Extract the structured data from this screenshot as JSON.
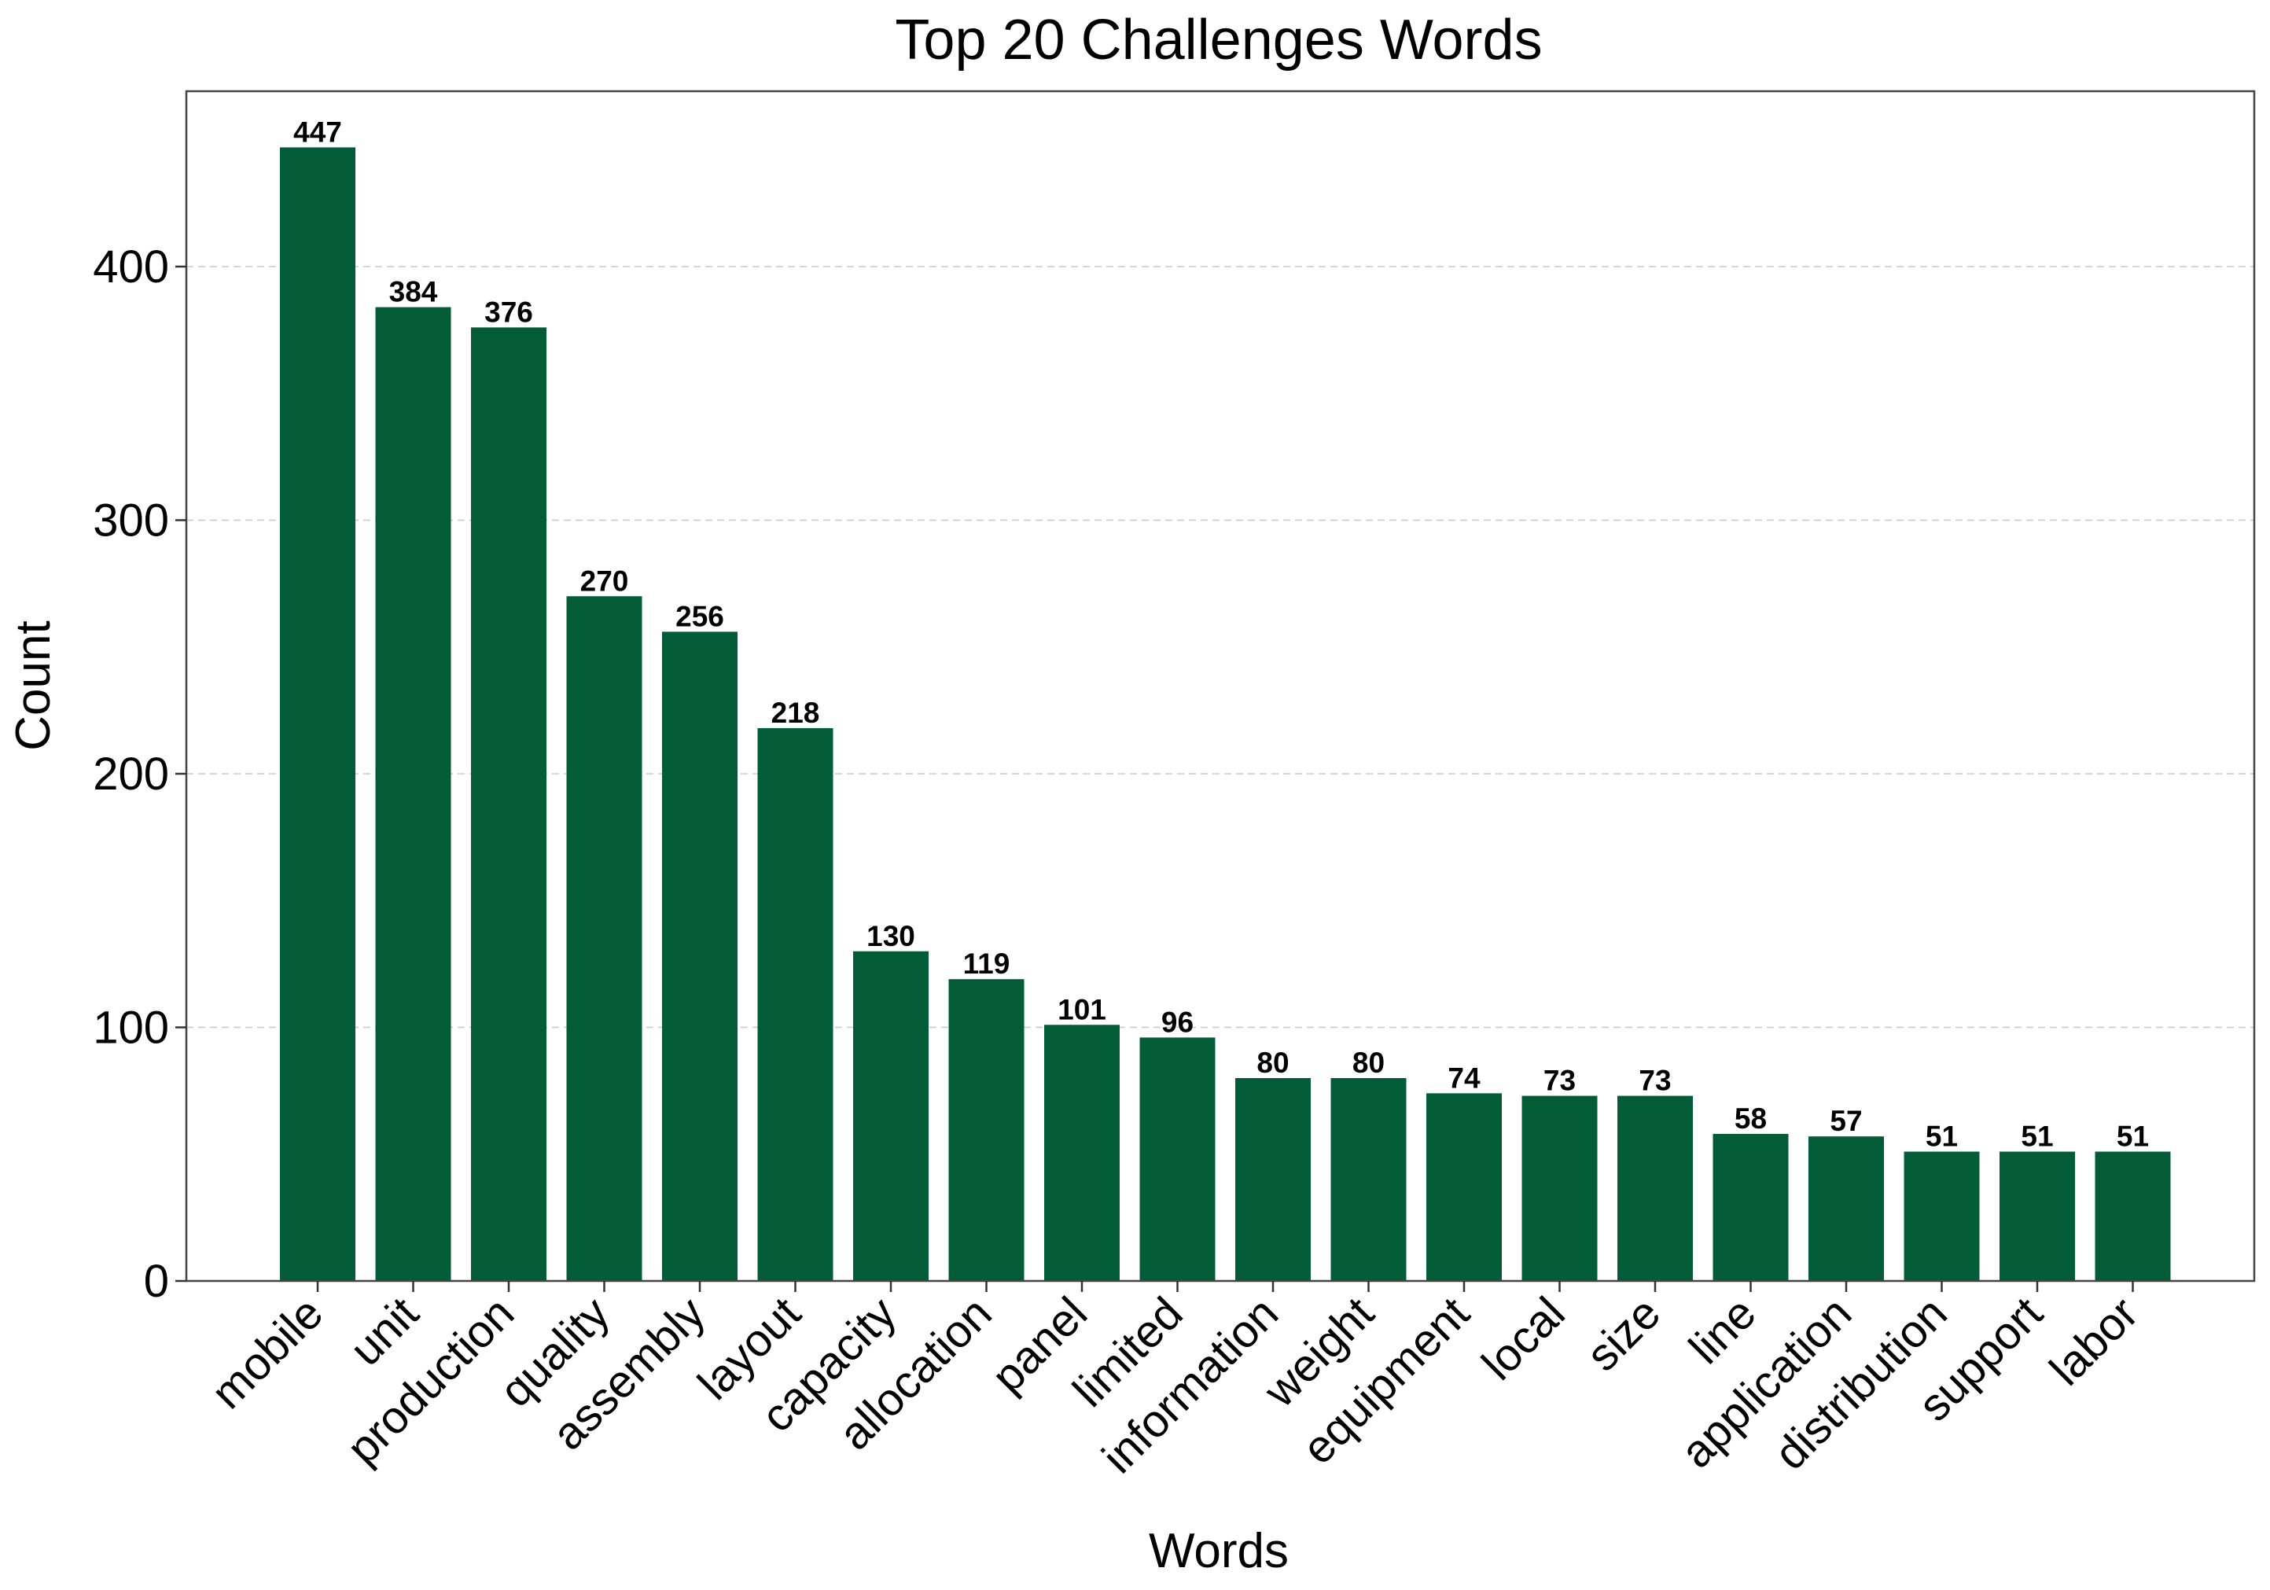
{
  "chart_data": {
    "type": "bar",
    "title": "Top 20 Challenges Words",
    "xlabel": "Words",
    "ylabel": "Count",
    "ylim": [
      0,
      470
    ],
    "yticks": [
      0,
      100,
      200,
      300,
      400
    ],
    "grid": "y dashed",
    "bar_color": "#035c38",
    "categories": [
      "mobile",
      "unit",
      "production",
      "quality",
      "assembly",
      "layout",
      "capacity",
      "allocation",
      "panel",
      "limited",
      "information",
      "weight",
      "equipment",
      "local",
      "size",
      "line",
      "application",
      "distribution",
      "support",
      "labor"
    ],
    "values": [
      447,
      384,
      376,
      270,
      256,
      218,
      130,
      119,
      101,
      96,
      80,
      80,
      74,
      73,
      73,
      58,
      57,
      51,
      51,
      51
    ]
  }
}
